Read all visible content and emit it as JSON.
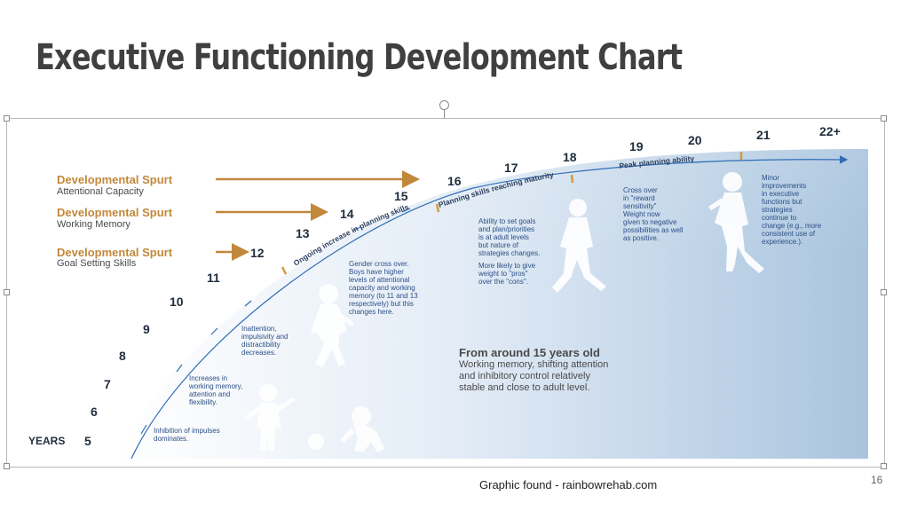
{
  "slide": {
    "title": "Executive Functioning Development Chart",
    "caption": "Graphic found - rainbowrehab.com",
    "page_number": "16"
  },
  "spurts": [
    {
      "title": "Developmental Spurt",
      "skill": "Attentional Capacity",
      "target_age": "16"
    },
    {
      "title": "Developmental Spurt",
      "skill": "Working Memory",
      "target_age": "14"
    },
    {
      "title": "Developmental Spurt",
      "skill": "Goal Setting Skills",
      "target_age": "12"
    }
  ],
  "years_label": "YEARS",
  "ages": [
    "5",
    "6",
    "7",
    "8",
    "9",
    "10",
    "11",
    "12",
    "13",
    "14",
    "15",
    "16",
    "17",
    "18",
    "19",
    "20",
    "21",
    "22+"
  ],
  "arc_labels": [
    "Ongoing increase in planning skills",
    "Planning skills reaching maturity",
    "Peak planning ability"
  ],
  "notes": [
    "Inhibition of impulses\ndominates.",
    "Increases in\nworking memory,\nattention and\nflexibility.",
    "Inattention,\nimpulsivity and\ndistractibility\ndecreases.",
    "Gender cross over.\nBoys have higher\nlevels of attentional\ncapacity and working\nmemory (to 11 and 13\nrespectively) but this\nchanges here.",
    "Ability to set goals\nand plan/priorities\nis at adult levels\nbut nature of\nstrategies changes.",
    "More likely to give\nweight to \"pros\"\nover the \"cons\".",
    "Cross over\nin \"reward\nsensitivity\"\nWeight now\ngiven to negative\npossibilities as well\nas positive.",
    "Minor\nimprovements\nin executive\nfunctions but\nstrategies\ncontinue to\nchange (e.g., more\nconsistent use of\nexperience.)."
  ],
  "summary": {
    "title": "From around 15 years old",
    "body": "Working memory, shifting attention\nand inhibitory control relatively\nstable and close to adult level."
  },
  "colors": {
    "title": "#404040",
    "spurt_gold": "#c2883a",
    "arc_blue": "#2e6db5",
    "note_blue": "#2b4f86",
    "panel_blue": "#a9c4de"
  }
}
